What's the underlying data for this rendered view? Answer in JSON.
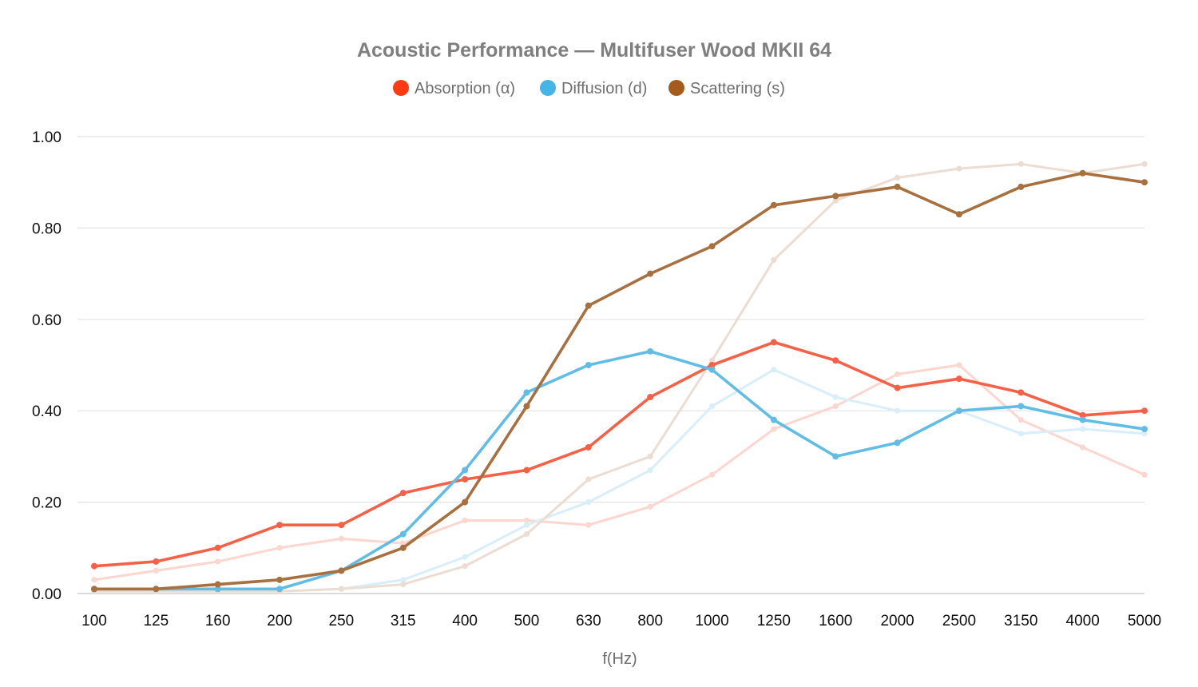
{
  "chart_data": {
    "type": "line",
    "title": "Acoustic Performance — Multifuser Wood MKII 64",
    "xlabel": "f(Hz)",
    "ylabel": "",
    "ylim": [
      0,
      1
    ],
    "ytick_labels": [
      "0.00",
      "0.20",
      "0.40",
      "0.60",
      "0.80",
      "1.00"
    ],
    "ytick_values": [
      0,
      0.2,
      0.4,
      0.6,
      0.8,
      1.0
    ],
    "grid": true,
    "legend_position": "top",
    "categories": [
      "100",
      "125",
      "160",
      "200",
      "250",
      "315",
      "400",
      "500",
      "630",
      "800",
      "1000",
      "1250",
      "1600",
      "2000",
      "2500",
      "3150",
      "4000",
      "5000"
    ],
    "series": [
      {
        "name": "Absorption (α)",
        "color": "#fd3a14",
        "line_color": "#f56147",
        "values": [
          0.06,
          0.07,
          0.1,
          0.15,
          0.15,
          0.22,
          0.25,
          0.27,
          0.32,
          0.43,
          0.5,
          0.55,
          0.51,
          0.45,
          0.47,
          0.44,
          0.39,
          0.4
        ]
      },
      {
        "name": "Diffusion (d)",
        "color": "#46b4e5",
        "line_color": "#62bde6",
        "values": [
          0.01,
          0.01,
          0.01,
          0.01,
          0.05,
          0.13,
          0.27,
          0.44,
          0.5,
          0.53,
          0.49,
          0.38,
          0.3,
          0.33,
          0.4,
          0.41,
          0.38,
          0.36
        ]
      },
      {
        "name": "Scattering (s)",
        "color": "#a45b1b",
        "line_color": "#a8703f",
        "values": [
          0.01,
          0.01,
          0.02,
          0.03,
          0.05,
          0.1,
          0.2,
          0.41,
          0.63,
          0.7,
          0.76,
          0.85,
          0.87,
          0.89,
          0.83,
          0.89,
          0.92,
          0.9
        ]
      }
    ],
    "background_series": [
      {
        "color": "#fcd6cf",
        "values": [
          0.03,
          0.05,
          0.07,
          0.1,
          0.12,
          0.11,
          0.16,
          0.16,
          0.15,
          0.19,
          0.26,
          0.36,
          0.41,
          0.48,
          0.5,
          0.38,
          0.32,
          0.26
        ]
      },
      {
        "color": "#d8eef8",
        "values": [
          0.005,
          0.005,
          0.005,
          0.005,
          0.01,
          0.03,
          0.08,
          0.15,
          0.2,
          0.27,
          0.41,
          0.49,
          0.43,
          0.4,
          0.4,
          0.35,
          0.36,
          0.35
        ]
      },
      {
        "color": "#ecddd2",
        "values": [
          0.005,
          0.005,
          0.005,
          0.005,
          0.01,
          0.02,
          0.06,
          0.13,
          0.25,
          0.3,
          0.51,
          0.73,
          0.86,
          0.91,
          0.93,
          0.94,
          0.92,
          0.94
        ]
      }
    ]
  }
}
